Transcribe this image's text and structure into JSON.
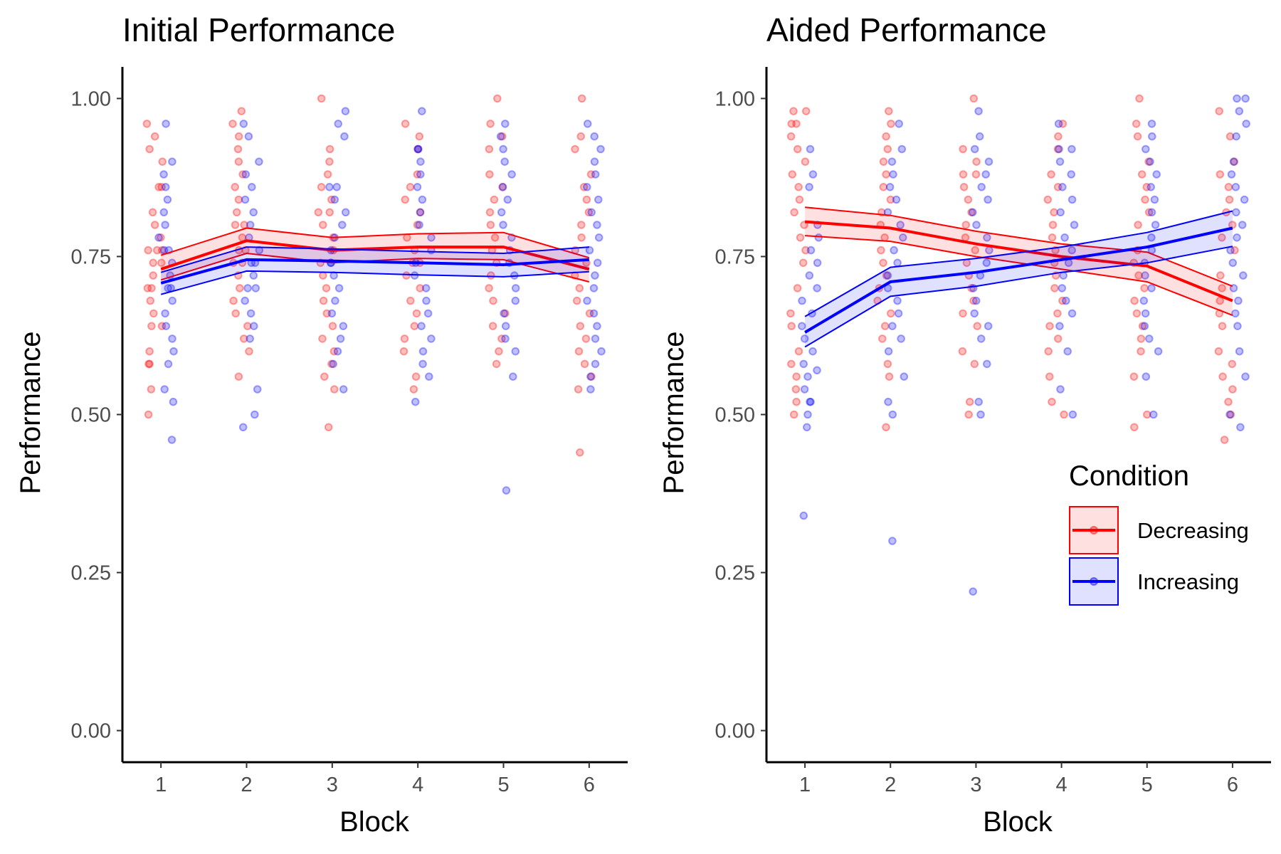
{
  "chart_data": [
    {
      "type": "line",
      "title": "Initial Performance",
      "xlabel": "Block",
      "ylabel": "Performance",
      "x": [
        1,
        2,
        3,
        4,
        5,
        6
      ],
      "xlim": [
        0.55,
        6.45
      ],
      "ylim": [
        -0.05,
        1.05
      ],
      "yticks": [
        0.0,
        0.25,
        0.5,
        0.75,
        1.0
      ],
      "ytick_labels": [
        "0.00",
        "0.25",
        "0.50",
        "0.75",
        "1.00"
      ],
      "xtick_labels": [
        "1",
        "2",
        "3",
        "4",
        "5",
        "6"
      ],
      "grid": false,
      "series": [
        {
          "name": "Decreasing",
          "color": "#ff0000",
          "mean": [
            0.73,
            0.775,
            0.76,
            0.765,
            0.765,
            0.73
          ],
          "upper": [
            0.752,
            0.795,
            0.78,
            0.786,
            0.788,
            0.748
          ],
          "lower": [
            0.713,
            0.755,
            0.74,
            0.747,
            0.745,
            0.71
          ],
          "points": [
            [
              0.86,
              0.76,
              0.7,
              0.74,
              0.64,
              0.58,
              0.82,
              0.94,
              0.76,
              0.68,
              0.5,
              0.9,
              0.72,
              0.6,
              0.8,
              0.54,
              0.76,
              0.86,
              0.7,
              0.64,
              0.96,
              0.74,
              0.58,
              0.78,
              0.66,
              0.92
            ],
            [
              0.98,
              0.92,
              0.8,
              0.74,
              0.68,
              0.86,
              0.76,
              0.96,
              0.6,
              0.72,
              0.88,
              0.78,
              0.64,
              0.82,
              0.9,
              0.7,
              0.56,
              0.76,
              0.94,
              0.84,
              0.66,
              0.8,
              0.62,
              0.74
            ],
            [
              1.0,
              0.92,
              0.84,
              0.76,
              0.64,
              0.58,
              0.82,
              0.88,
              0.7,
              0.54,
              0.62,
              0.8,
              0.74,
              0.68,
              0.48,
              0.9,
              0.86,
              0.78,
              0.6,
              0.72,
              0.66,
              0.56,
              0.82
            ],
            [
              0.94,
              0.86,
              0.8,
              0.74,
              0.68,
              0.62,
              0.56,
              0.92,
              0.78,
              0.7,
              0.84,
              0.76,
              0.64,
              0.54,
              0.88,
              0.72,
              0.66,
              0.96,
              0.82,
              0.6,
              0.74
            ],
            [
              1.0,
              0.94,
              0.86,
              0.8,
              0.74,
              0.7,
              0.64,
              0.58,
              0.92,
              0.84,
              0.76,
              0.68,
              0.62,
              0.96,
              0.72,
              0.66,
              0.6,
              0.88,
              0.78,
              0.82
            ],
            [
              1.0,
              0.94,
              0.88,
              0.84,
              0.78,
              0.74,
              0.7,
              0.66,
              0.62,
              0.58,
              0.54,
              0.44,
              0.92,
              0.82,
              0.76,
              0.72,
              0.68,
              0.6,
              0.56,
              0.86,
              0.8,
              0.64
            ]
          ]
        },
        {
          "name": "Increasing",
          "color": "#0000ff",
          "mean": [
            0.708,
            0.745,
            0.743,
            0.74,
            0.737,
            0.745
          ],
          "upper": [
            0.725,
            0.765,
            0.762,
            0.758,
            0.755,
            0.765
          ],
          "lower": [
            0.69,
            0.727,
            0.725,
            0.721,
            0.718,
            0.726
          ],
          "points": [
            [
              0.96,
              0.9,
              0.86,
              0.82,
              0.78,
              0.74,
              0.7,
              0.66,
              0.62,
              0.58,
              0.54,
              0.52,
              0.46,
              0.88,
              0.8,
              0.76,
              0.72,
              0.68,
              0.64,
              0.6,
              0.84,
              0.7,
              0.76
            ],
            [
              0.96,
              0.9,
              0.86,
              0.82,
              0.78,
              0.74,
              0.7,
              0.66,
              0.62,
              0.54,
              0.5,
              0.48,
              0.94,
              0.8,
              0.76,
              0.72,
              0.68,
              0.64,
              0.84,
              0.88,
              0.74,
              0.7
            ],
            [
              0.98,
              0.94,
              0.86,
              0.82,
              0.78,
              0.74,
              0.7,
              0.66,
              0.62,
              0.58,
              0.54,
              0.96,
              0.84,
              0.8,
              0.76,
              0.72,
              0.68,
              0.64,
              0.6,
              0.86,
              0.74
            ],
            [
              0.98,
              0.92,
              0.88,
              0.84,
              0.8,
              0.76,
              0.72,
              0.68,
              0.64,
              0.6,
              0.56,
              0.52,
              0.9,
              0.86,
              0.82,
              0.78,
              0.74,
              0.7,
              0.66,
              0.62,
              0.58,
              0.92
            ],
            [
              0.96,
              0.92,
              0.88,
              0.84,
              0.8,
              0.76,
              0.72,
              0.68,
              0.64,
              0.6,
              0.56,
              0.38,
              0.94,
              0.86,
              0.82,
              0.78,
              0.74,
              0.7,
              0.66,
              0.62,
              0.9
            ],
            [
              0.96,
              0.92,
              0.88,
              0.84,
              0.8,
              0.76,
              0.72,
              0.68,
              0.64,
              0.6,
              0.58,
              0.56,
              0.54,
              0.94,
              0.9,
              0.86,
              0.82,
              0.78,
              0.74,
              0.7,
              0.66,
              0.62
            ]
          ]
        }
      ]
    },
    {
      "type": "line",
      "title": "Aided Performance",
      "xlabel": "Block",
      "ylabel": "Performance",
      "x": [
        1,
        2,
        3,
        4,
        5,
        6
      ],
      "xlim": [
        0.55,
        6.45
      ],
      "ylim": [
        -0.05,
        1.05
      ],
      "yticks": [
        0.0,
        0.25,
        0.5,
        0.75,
        1.0
      ],
      "ytick_labels": [
        "0.00",
        "0.25",
        "0.50",
        "0.75",
        "1.00"
      ],
      "xtick_labels": [
        "1",
        "2",
        "3",
        "4",
        "5",
        "6"
      ],
      "grid": false,
      "legend": {
        "title": "Condition",
        "position": "right",
        "entries": [
          "Decreasing",
          "Increasing"
        ]
      },
      "series": [
        {
          "name": "Decreasing",
          "color": "#ff0000",
          "mean": [
            0.805,
            0.795,
            0.77,
            0.75,
            0.735,
            0.68
          ],
          "upper": [
            0.828,
            0.815,
            0.79,
            0.77,
            0.757,
            0.703
          ],
          "lower": [
            0.783,
            0.774,
            0.75,
            0.73,
            0.71,
            0.657
          ],
          "points": [
            [
              0.98,
              0.96,
              0.92,
              0.88,
              0.86,
              0.84,
              0.8,
              0.78,
              0.74,
              0.7,
              0.64,
              0.6,
              0.56,
              0.52,
              0.98,
              0.94,
              0.9,
              0.82,
              0.76,
              0.66,
              0.58,
              0.54,
              0.5,
              0.96
            ],
            [
              0.98,
              0.96,
              0.92,
              0.88,
              0.86,
              0.82,
              0.8,
              0.76,
              0.74,
              0.7,
              0.66,
              0.62,
              0.56,
              0.48,
              0.94,
              0.9,
              0.84,
              0.78,
              0.72,
              0.68,
              0.64,
              0.58
            ],
            [
              1.0,
              0.92,
              0.88,
              0.86,
              0.82,
              0.8,
              0.76,
              0.72,
              0.7,
              0.66,
              0.6,
              0.52,
              0.5,
              0.9,
              0.84,
              0.78,
              0.74,
              0.68,
              0.64,
              0.58,
              0.88
            ],
            [
              0.96,
              0.94,
              0.88,
              0.86,
              0.82,
              0.78,
              0.76,
              0.74,
              0.7,
              0.68,
              0.64,
              0.6,
              0.52,
              0.5,
              0.92,
              0.84,
              0.8,
              0.72,
              0.66,
              0.62,
              0.56
            ],
            [
              1.0,
              0.94,
              0.9,
              0.86,
              0.84,
              0.8,
              0.76,
              0.72,
              0.7,
              0.66,
              0.64,
              0.6,
              0.56,
              0.5,
              0.48,
              0.96,
              0.88,
              0.82,
              0.74,
              0.68,
              0.62
            ],
            [
              0.98,
              0.9,
              0.88,
              0.86,
              0.82,
              0.78,
              0.72,
              0.68,
              0.64,
              0.6,
              0.56,
              0.52,
              0.5,
              0.46,
              0.94,
              0.84,
              0.8,
              0.76,
              0.7,
              0.66,
              0.58,
              0.54
            ]
          ]
        },
        {
          "name": "Increasing",
          "color": "#0000ff",
          "mean": [
            0.63,
            0.71,
            0.725,
            0.745,
            0.765,
            0.795
          ],
          "upper": [
            0.655,
            0.733,
            0.747,
            0.765,
            0.788,
            0.822
          ],
          "lower": [
            0.607,
            0.687,
            0.703,
            0.725,
            0.74,
            0.766
          ],
          "points": [
            [
              0.92,
              0.88,
              0.8,
              0.76,
              0.74,
              0.7,
              0.66,
              0.64,
              0.62,
              0.58,
              0.56,
              0.54,
              0.52,
              0.5,
              0.48,
              0.34,
              0.86,
              0.78,
              0.72,
              0.68,
              0.6,
              0.57,
              0.52
            ],
            [
              0.96,
              0.92,
              0.88,
              0.84,
              0.8,
              0.78,
              0.74,
              0.7,
              0.66,
              0.64,
              0.6,
              0.56,
              0.52,
              0.5,
              0.3,
              0.9,
              0.86,
              0.82,
              0.76,
              0.72,
              0.68,
              0.62
            ],
            [
              0.98,
              0.94,
              0.9,
              0.86,
              0.84,
              0.8,
              0.76,
              0.72,
              0.7,
              0.66,
              0.62,
              0.58,
              0.52,
              0.5,
              0.22,
              0.92,
              0.88,
              0.82,
              0.78,
              0.74,
              0.68,
              0.64
            ],
            [
              0.96,
              0.92,
              0.88,
              0.84,
              0.8,
              0.76,
              0.74,
              0.72,
              0.68,
              0.66,
              0.6,
              0.54,
              0.5,
              0.9,
              0.86,
              0.82,
              0.78,
              0.7,
              0.64,
              0.92
            ],
            [
              0.96,
              0.92,
              0.88,
              0.86,
              0.84,
              0.8,
              0.76,
              0.72,
              0.68,
              0.64,
              0.6,
              0.56,
              0.5,
              0.9,
              0.82,
              0.78,
              0.74,
              0.7,
              0.66,
              0.62,
              0.94
            ],
            [
              1.0,
              0.98,
              0.96,
              0.94,
              0.9,
              0.86,
              0.84,
              0.8,
              0.76,
              0.72,
              0.68,
              0.64,
              0.6,
              0.56,
              0.5,
              0.48,
              1.0,
              0.88,
              0.82,
              0.78,
              0.74,
              0.7,
              0.66
            ]
          ]
        }
      ]
    }
  ]
}
